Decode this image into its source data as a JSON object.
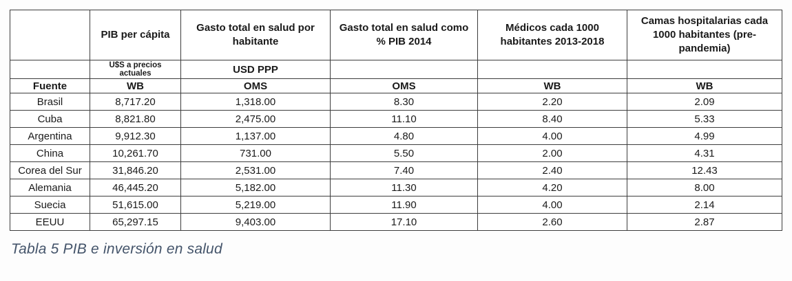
{
  "page": {
    "background": "#fdfdfd",
    "table_border_color": "#3c3c3c"
  },
  "table": {
    "headers": [
      "",
      "PIB per cápita",
      "Gasto total en salud por habitante",
      "Gasto total en salud como % PIB 2014",
      "Médicos cada 1000 habitantes 2013-2018",
      "Camas hospitalarias cada 1000 habitantes (pre-pandemia)"
    ],
    "units": [
      "",
      "U$S a precios actuales",
      "USD PPP",
      "",
      "",
      ""
    ],
    "source_row": {
      "label": "Fuente",
      "sources": [
        "WB",
        "OMS",
        "OMS",
        "WB",
        "WB"
      ]
    },
    "rows": [
      {
        "country": "Brasil",
        "values": [
          "8,717.20",
          "1,318.00",
          "8.30",
          "2.20",
          "2.09"
        ]
      },
      {
        "country": "Cuba",
        "values": [
          "8,821.80",
          "2,475.00",
          "11.10",
          "8.40",
          "5.33"
        ]
      },
      {
        "country": "Argentina",
        "values": [
          "9,912.30",
          "1,137.00",
          "4.80",
          "4.00",
          "4.99"
        ]
      },
      {
        "country": "China",
        "values": [
          "10,261.70",
          "731.00",
          "5.50",
          "2.00",
          "4.31"
        ]
      },
      {
        "country": "Corea del Sur",
        "values": [
          "31,846.20",
          "2,531.00",
          "7.40",
          "2.40",
          "12.43"
        ]
      },
      {
        "country": "Alemania",
        "values": [
          "46,445.20",
          "5,182.00",
          "11.30",
          "4.20",
          "8.00"
        ]
      },
      {
        "country": "Suecia",
        "values": [
          "51,615.00",
          "5,219.00",
          "11.90",
          "4.00",
          "2.14"
        ]
      },
      {
        "country": "EEUU",
        "values": [
          "65,297.15",
          "9,403.00",
          "17.10",
          "2.60",
          "2.87"
        ]
      }
    ]
  },
  "caption": {
    "text": "Tabla 5 PIB e inversión en salud",
    "color": "#44546A"
  }
}
